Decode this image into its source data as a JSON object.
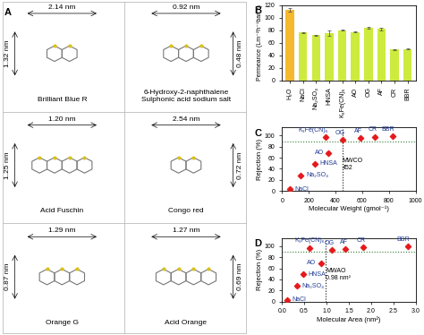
{
  "panel_labels": [
    "A",
    "B",
    "C",
    "D"
  ],
  "structures": [
    {
      "name": "Brilliant Blue R",
      "width": "2.14 nm",
      "height": "1.32 nm"
    },
    {
      "name": "6-Hydroxy-2-naphthalene Sulphonic acid sodium salt",
      "width": "0.92 nm",
      "height": "0.48 nm"
    },
    {
      "name": "Acid Fuschin",
      "width": "1.20 nm",
      "height": "1.25 nm"
    },
    {
      "name": "Congo red",
      "width": "2.54 nm",
      "height": "0.72 nm"
    },
    {
      "name": "Orange G",
      "width": "1.29 nm",
      "height": "0.87 nm"
    },
    {
      "name": "Acid Orange",
      "width": "1.27 nm",
      "height": "0.69 nm"
    }
  ],
  "chart_data": [
    {
      "type": "bar",
      "ylabel": "Permeance (Lm⁻²h⁻¹bar⁻¹)",
      "categories": [
        "H₂O",
        "NaCl",
        "Na₂SO₄",
        "HNSA",
        "K₃Fe(CN)₆",
        "AO",
        "OG",
        "AF",
        "CR",
        "BBR"
      ],
      "values": [
        112,
        76,
        72,
        75,
        80,
        77,
        84,
        82,
        49,
        50
      ],
      "errors": [
        3,
        1,
        1,
        4,
        1,
        1,
        1,
        2,
        1,
        1
      ],
      "colors": [
        "#f5b82e",
        "#cdea3e",
        "#cdea3e",
        "#cdea3e",
        "#cdea3e",
        "#cdea3e",
        "#cdea3e",
        "#cdea3e",
        "#cdea3e",
        "#cdea3e"
      ],
      "ylim": [
        0,
        120
      ],
      "yticks": [
        0,
        20,
        40,
        60,
        80,
        100,
        120
      ]
    },
    {
      "type": "scatter",
      "xlabel": "Molecular Weight (gmol⁻¹)",
      "ylabel": "Rejection (%)",
      "point_labels": [
        "NaCl",
        "Na₂SO₄",
        "HNSA",
        "K₃Fe(CN)₆",
        "AO",
        "OG",
        "AF",
        "CR",
        "BBR"
      ],
      "x": [
        58,
        142,
        246,
        329,
        350,
        452,
        586,
        697,
        826
      ],
      "values": [
        3,
        28,
        49,
        97,
        69,
        93,
        95,
        98,
        99
      ],
      "errors": [
        1,
        2,
        2,
        1,
        2,
        1,
        1,
        1,
        1
      ],
      "color": "#e41a1c",
      "marker": "diamond",
      "xlim": [
        0,
        1000
      ],
      "xticks": [
        0,
        200,
        400,
        600,
        800,
        1000
      ],
      "ylim": [
        0,
        115
      ],
      "yticks": [
        0,
        20,
        40,
        60,
        80,
        100
      ],
      "reference_lines": {
        "x": 452,
        "y": 90
      },
      "annotation": "MWCO\n452"
    },
    {
      "type": "scatter",
      "xlabel": "Molecular Area (nm²)",
      "ylabel": "Rejection (%)",
      "point_labels": [
        "NaCl",
        "Na₂SO₄",
        "HNSA",
        "K₃Fe(CN)₆",
        "AO",
        "OG",
        "AF",
        "CR",
        "BBR"
      ],
      "x": [
        0.12,
        0.33,
        0.48,
        0.62,
        0.88,
        1.12,
        1.42,
        1.82,
        2.82
      ],
      "values": [
        3,
        28,
        49,
        97,
        69,
        93,
        95,
        98,
        99
      ],
      "errors": [
        1,
        2,
        2,
        1,
        2,
        1,
        1,
        1,
        1
      ],
      "color": "#e41a1c",
      "marker": "diamond",
      "xlim": [
        0,
        3
      ],
      "xticks": [
        {
          "value": 0,
          "label": "0.0"
        },
        {
          "value": 0.5,
          "label": "0.5"
        },
        {
          "value": 1,
          "label": "1.0"
        },
        {
          "value": 1.5,
          "label": "1.5"
        },
        {
          "value": 2,
          "label": "2.0"
        },
        {
          "value": 2.5,
          "label": "2.5"
        },
        {
          "value": 3,
          "label": "3.0"
        }
      ],
      "ylim": [
        0,
        115
      ],
      "yticks": [
        0,
        20,
        40,
        60,
        80,
        100
      ],
      "reference_lines": {
        "x": 0.98,
        "y": 90
      },
      "annotation": "MWAO\n0.98 nm²"
    }
  ]
}
